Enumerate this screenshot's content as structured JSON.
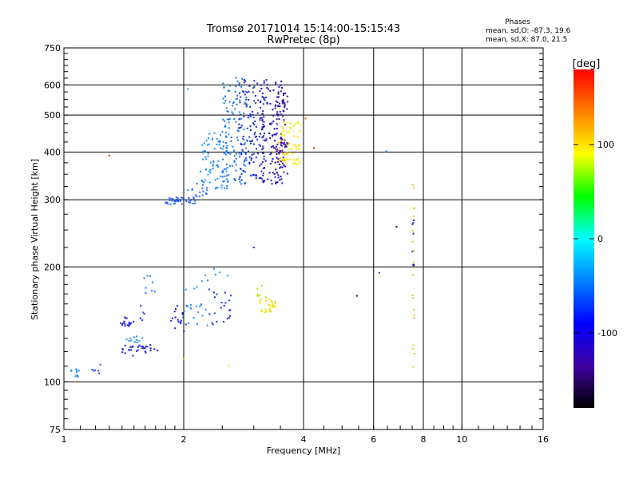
{
  "header": {
    "title_line1": "Tromsø 20171014 15:14:00-15:15:43",
    "title_line2": "RwPretec (8p)",
    "phases_label": "Phases",
    "phases_o": "mean, sd,O: -87.3, 19.6",
    "phases_x": "mean, sd,X:  87.0, 21.5"
  },
  "chart_data": {
    "type": "scatter",
    "xlabel": "Frequency [MHz]",
    "ylabel": "Stationary phase Virtual Height [km]",
    "xscale": "log",
    "yscale": "log",
    "xlim": [
      1,
      16
    ],
    "ylim": [
      75,
      750
    ],
    "x_ticks": [
      1,
      2,
      4,
      6,
      8,
      10,
      16
    ],
    "y_ticks": [
      75,
      100,
      200,
      300,
      400,
      500,
      600,
      750
    ],
    "grid": true,
    "colorbar": {
      "label": "[deg]",
      "range": [
        -180,
        180
      ],
      "ticks": [
        100,
        0,
        -100
      ],
      "colors": [
        "#ff0000",
        "#ff8000",
        "#ffff00",
        "#00ff00",
        "#00ffff",
        "#0080ff",
        "#0000ff",
        "#4000a0",
        "#000000"
      ]
    },
    "clusters": [
      {
        "x": [
          1.03,
          1.1
        ],
        "y": [
          102,
          108
        ],
        "n": 10,
        "color": "#1e90ff"
      },
      {
        "x": [
          1.17,
          1.24
        ],
        "y": [
          104,
          112
        ],
        "n": 6,
        "color": "#2040ff"
      },
      {
        "x": [
          1.37,
          1.5
        ],
        "y": [
          140,
          148
        ],
        "n": 18,
        "color": "#1a20e0"
      },
      {
        "x": [
          1.4,
          1.72
        ],
        "y": [
          117,
          125
        ],
        "n": 30,
        "color": "#1a20e0"
      },
      {
        "x": [
          1.42,
          1.58
        ],
        "y": [
          126,
          132
        ],
        "n": 12,
        "color": "#1e90ff"
      },
      {
        "x": [
          1.55,
          1.62
        ],
        "y": [
          145,
          160
        ],
        "n": 6,
        "color": "#2040ff"
      },
      {
        "x": [
          1.58,
          1.7
        ],
        "y": [
          165,
          190
        ],
        "n": 8,
        "color": "#1e80ff"
      },
      {
        "x": [
          1.85,
          2.05
        ],
        "y": [
          135,
          160
        ],
        "n": 18,
        "color": "#1a20e0"
      },
      {
        "x": [
          2.0,
          2.3
        ],
        "y": [
          140,
          160
        ],
        "n": 16,
        "color": "#1e90ff"
      },
      {
        "x": [
          2.3,
          2.7
        ],
        "y": [
          140,
          175
        ],
        "n": 22,
        "color": "#2030f0"
      },
      {
        "x": [
          2.0,
          2.6
        ],
        "y": [
          170,
          200
        ],
        "n": 10,
        "color": "#1e90ff"
      },
      {
        "x": [
          3.1,
          3.4
        ],
        "y": [
          152,
          165
        ],
        "n": 26,
        "color": "#f0e000"
      },
      {
        "x": [
          3.05,
          3.25
        ],
        "y": [
          165,
          180
        ],
        "n": 6,
        "color": "#c0e000"
      },
      {
        "x": [
          1.8,
          2.15
        ],
        "y": [
          292,
          305
        ],
        "n": 40,
        "color": "#2860ff"
      },
      {
        "x": [
          2.05,
          2.3
        ],
        "y": [
          305,
          340
        ],
        "n": 18,
        "color": "#1e70ff"
      },
      {
        "x": [
          2.2,
          2.6
        ],
        "y": [
          320,
          450
        ],
        "n": 80,
        "color": "#1e8cff"
      },
      {
        "x": [
          2.5,
          2.9
        ],
        "y": [
          330,
          640
        ],
        "n": 120,
        "color": "#1e78f0"
      },
      {
        "x": [
          2.75,
          3.2
        ],
        "y": [
          330,
          630
        ],
        "n": 130,
        "color": "#1a30d0"
      },
      {
        "x": [
          3.1,
          3.6
        ],
        "y": [
          330,
          620
        ],
        "n": 130,
        "color": "#2010c0"
      },
      {
        "x": [
          3.35,
          3.65
        ],
        "y": [
          350,
          600
        ],
        "n": 60,
        "color": "#3a10a0"
      },
      {
        "x": [
          3.5,
          3.95
        ],
        "y": [
          370,
          480
        ],
        "n": 60,
        "color": "#f0f000"
      },
      {
        "x": [
          3.45,
          3.7
        ],
        "y": [
          380,
          430
        ],
        "n": 12,
        "color": "#ffb000"
      },
      {
        "x": [
          7.5,
          7.6
        ],
        "y": [
          105,
          350
        ],
        "n": 22,
        "color": "#e0d000"
      },
      {
        "x": [
          7.5,
          7.6
        ],
        "y": [
          200,
          270
        ],
        "n": 8,
        "color": "#1a20e0"
      }
    ],
    "points": [
      {
        "x": 1.3,
        "y": 392,
        "color": "#ff3000"
      },
      {
        "x": 2.05,
        "y": 585,
        "color": "#1e90ff"
      },
      {
        "x": 3.0,
        "y": 225,
        "color": "#1a20e0"
      },
      {
        "x": 4.25,
        "y": 410,
        "color": "#ff2000"
      },
      {
        "x": 4.05,
        "y": 490,
        "color": "#ff6000"
      },
      {
        "x": 5.45,
        "y": 168,
        "color": "#400080"
      },
      {
        "x": 6.2,
        "y": 193,
        "color": "#2040ff"
      },
      {
        "x": 6.45,
        "y": 402,
        "color": "#1e90ff"
      },
      {
        "x": 6.85,
        "y": 255,
        "color": "#000060"
      },
      {
        "x": 2.6,
        "y": 110,
        "color": "#f0e000"
      },
      {
        "x": 2.0,
        "y": 115,
        "color": "#f0e000"
      }
    ]
  }
}
